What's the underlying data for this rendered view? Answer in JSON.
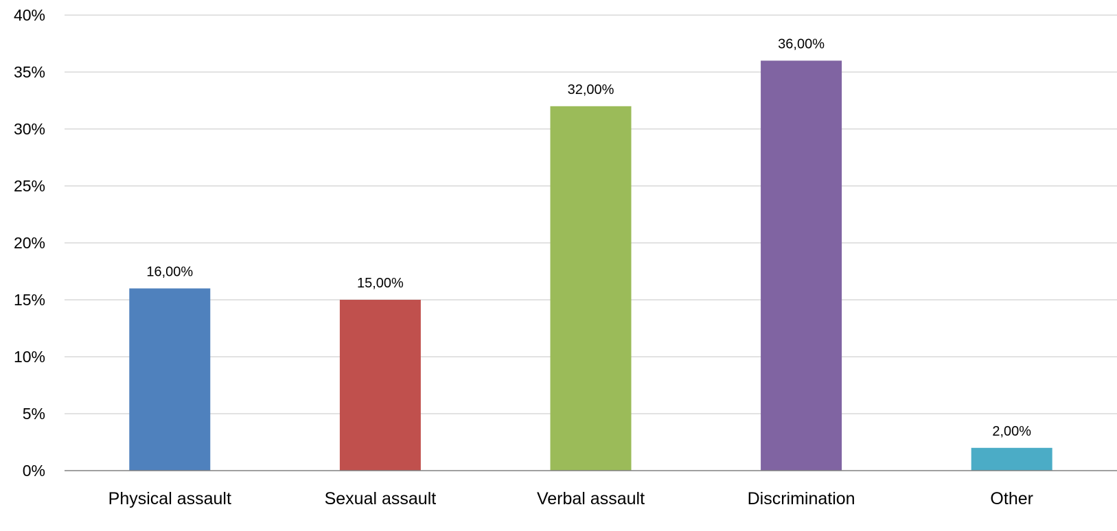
{
  "chart_data": {
    "type": "bar",
    "title": "",
    "xlabel": "",
    "ylabel": "",
    "categories": [
      "Physical assault",
      "Sexual assault",
      "Verbal assault",
      "Discrimination",
      "Other"
    ],
    "values": [
      16,
      15,
      32,
      36,
      2
    ],
    "data_labels": [
      "16,00%",
      "15,00%",
      "32,00%",
      "36,00%",
      "2,00%"
    ],
    "colors": [
      "#4f81bd",
      "#c0504d",
      "#9bbb59",
      "#8064a2",
      "#4bacc6"
    ],
    "ylim": [
      0,
      40
    ],
    "yticks": [
      0,
      5,
      10,
      15,
      20,
      25,
      30,
      35,
      40
    ],
    "ytick_labels": [
      "0%",
      "5%",
      "10%",
      "15%",
      "20%",
      "25%",
      "30%",
      "35%",
      "40%"
    ],
    "grid": true,
    "legend": "none",
    "gridline_color": "#d9d9d9",
    "axis_color": "#808080"
  }
}
